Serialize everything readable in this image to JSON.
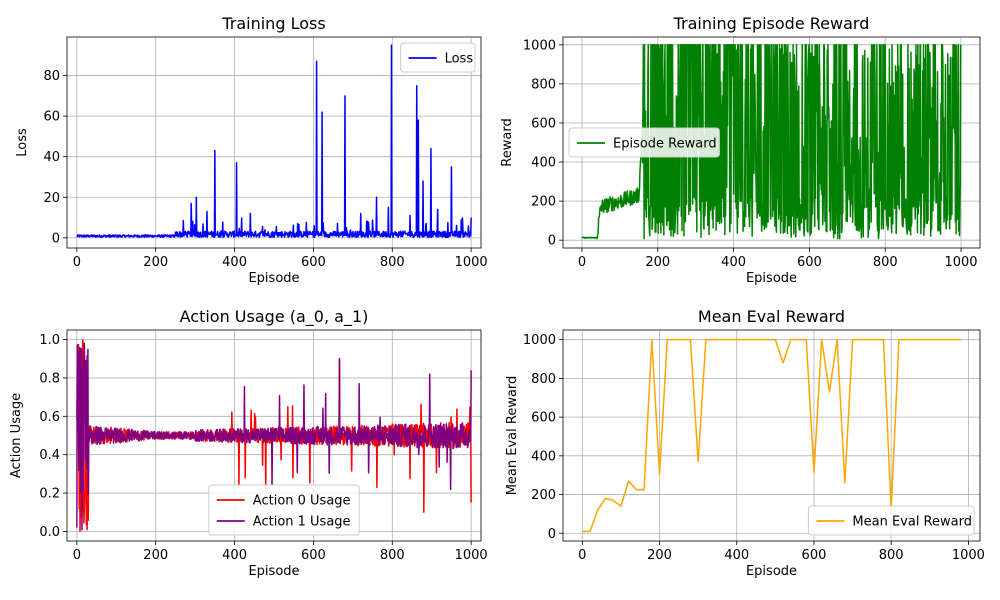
{
  "chart_data": [
    {
      "id": "loss",
      "type": "line",
      "title": "Training Loss",
      "xlabel": "Episode",
      "ylabel": "Loss",
      "xlim": [
        -25,
        1025
      ],
      "ylim": [
        -5,
        99
      ],
      "xticks": [
        0,
        200,
        400,
        600,
        800,
        1000
      ],
      "yticks": [
        0,
        20,
        40,
        60,
        80
      ],
      "grid": true,
      "legend": "upper-right",
      "series": [
        {
          "name": "Loss",
          "color": "#0000ff",
          "generator": "loss",
          "keypoints": [
            [
              290,
              17
            ],
            [
              303,
              20
            ],
            [
              330,
              13
            ],
            [
              350,
              43
            ],
            [
              405,
              37
            ],
            [
              440,
              12
            ],
            [
              560,
              7
            ],
            [
              608,
              87
            ],
            [
              622,
              62
            ],
            [
              680,
              70
            ],
            [
              720,
              12
            ],
            [
              760,
              20
            ],
            [
              790,
              15
            ],
            [
              798,
              95
            ],
            [
              845,
              11
            ],
            [
              862,
              75
            ],
            [
              866,
              58
            ],
            [
              878,
              28
            ],
            [
              898,
              44
            ],
            [
              915,
              14
            ],
            [
              950,
              35
            ],
            [
              975,
              9
            ],
            [
              1000,
              10
            ]
          ]
        }
      ]
    },
    {
      "id": "reward",
      "type": "line",
      "title": "Training Episode Reward",
      "xlabel": "Episode",
      "ylabel": "Reward",
      "xlim": [
        -50,
        1050
      ],
      "ylim": [
        -40,
        1040
      ],
      "xticks": [
        0,
        200,
        400,
        600,
        800,
        1000
      ],
      "yticks": [
        0,
        200,
        400,
        600,
        800,
        1000
      ],
      "grid": true,
      "legend": "center-left",
      "series": [
        {
          "name": "Episode Reward",
          "color": "#008000",
          "generator": "reward",
          "trend": [
            [
              0,
              10
            ],
            [
              20,
              10
            ],
            [
              40,
              30
            ],
            [
              50,
              170
            ],
            [
              100,
              200
            ],
            [
              150,
              230
            ],
            [
              160,
              600
            ],
            [
              200,
              800
            ],
            [
              250,
              750
            ],
            [
              400,
              650
            ],
            [
              600,
              450
            ],
            [
              700,
              300
            ],
            [
              800,
              280
            ],
            [
              900,
              250
            ],
            [
              1000,
              200
            ]
          ]
        }
      ]
    },
    {
      "id": "action",
      "type": "line",
      "title": "Action Usage (a_0, a_1)",
      "xlabel": "Episode",
      "ylabel": "Action Usage",
      "xlim": [
        -25,
        1025
      ],
      "ylim": [
        -0.05,
        1.05
      ],
      "xticks": [
        0,
        200,
        400,
        600,
        800,
        1000
      ],
      "yticks": [
        0.0,
        0.2,
        0.4,
        0.6,
        0.8,
        1.0
      ],
      "grid": true,
      "legend": "lower-center",
      "series": [
        {
          "name": "Action 0 Usage",
          "color": "#ff0000",
          "generator": "action0"
        },
        {
          "name": "Action 1 Usage",
          "color": "#800080",
          "generator": "action1"
        }
      ]
    },
    {
      "id": "eval",
      "type": "line",
      "title": "Mean Eval Reward",
      "xlabel": "Episode",
      "ylabel": "Mean Eval Reward",
      "xlim": [
        -50,
        1030
      ],
      "ylim": [
        -40,
        1050
      ],
      "xticks": [
        0,
        200,
        400,
        600,
        800,
        1000
      ],
      "yticks": [
        0,
        200,
        400,
        600,
        800,
        1000
      ],
      "grid": true,
      "legend": "lower-right",
      "series": [
        {
          "name": "Mean Eval Reward",
          "color": "#ffa500",
          "x": [
            0,
            20,
            40,
            60,
            80,
            100,
            120,
            140,
            160,
            180,
            200,
            220,
            240,
            260,
            280,
            300,
            320,
            340,
            360,
            380,
            400,
            420,
            440,
            460,
            480,
            500,
            520,
            540,
            560,
            580,
            600,
            620,
            640,
            660,
            680,
            700,
            720,
            740,
            760,
            780,
            800,
            820,
            840,
            860,
            880,
            900,
            920,
            940,
            960,
            980
          ],
          "y": [
            10,
            10,
            120,
            180,
            170,
            140,
            270,
            225,
            225,
            1000,
            305,
            1000,
            1000,
            1000,
            1000,
            370,
            1000,
            1000,
            1000,
            1000,
            1000,
            1000,
            1000,
            1000,
            1000,
            1000,
            880,
            1000,
            1000,
            1000,
            315,
            1000,
            730,
            1000,
            260,
            1000,
            1000,
            1000,
            1000,
            1000,
            120,
            1000,
            1000,
            1000,
            1000,
            1000,
            1000,
            1000,
            1000,
            1000
          ]
        }
      ]
    }
  ]
}
